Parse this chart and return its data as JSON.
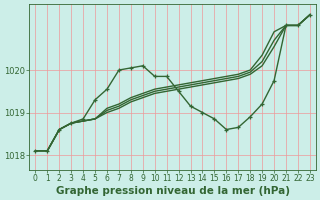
{
  "bg_color": "#cceee8",
  "grid_color": "#aaddcc",
  "line_color": "#336633",
  "marker_color": "#336633",
  "title": "Graphe pression niveau de la mer (hPa)",
  "xlim": [
    -0.5,
    23.5
  ],
  "ylim": [
    1017.65,
    1021.55
  ],
  "yticks": [
    1018,
    1019,
    1020
  ],
  "xticks": [
    0,
    1,
    2,
    3,
    4,
    5,
    6,
    7,
    8,
    9,
    10,
    11,
    12,
    13,
    14,
    15,
    16,
    17,
    18,
    19,
    20,
    21,
    22,
    23
  ],
  "series": [
    {
      "y": [
        1018.1,
        1018.1,
        1018.6,
        1018.75,
        1018.85,
        1019.3,
        1019.55,
        1020.0,
        1020.05,
        1020.1,
        1019.85,
        1019.85,
        1019.5,
        1019.15,
        1019.0,
        1018.85,
        1018.6,
        1018.65,
        1018.9,
        1019.2,
        1019.75,
        1021.05,
        1021.05,
        1021.3
      ],
      "markers": true,
      "lw": 1.0
    },
    {
      "y": [
        1018.1,
        1018.1,
        1018.6,
        1018.75,
        1018.8,
        1018.85,
        1019.1,
        1019.2,
        1019.35,
        1019.45,
        1019.55,
        1019.6,
        1019.65,
        1019.7,
        1019.75,
        1019.8,
        1019.85,
        1019.9,
        1020.0,
        1020.35,
        1020.9,
        1021.05,
        1021.05,
        1021.3
      ],
      "markers": false,
      "lw": 1.0
    },
    {
      "y": [
        1018.1,
        1018.1,
        1018.6,
        1018.75,
        1018.8,
        1018.85,
        1019.05,
        1019.15,
        1019.3,
        1019.4,
        1019.5,
        1019.55,
        1019.6,
        1019.65,
        1019.7,
        1019.75,
        1019.8,
        1019.85,
        1019.95,
        1020.2,
        1020.7,
        1021.05,
        1021.05,
        1021.3
      ],
      "markers": false,
      "lw": 1.0
    },
    {
      "y": [
        1018.1,
        1018.1,
        1018.6,
        1018.75,
        1018.8,
        1018.85,
        1019.0,
        1019.1,
        1019.25,
        1019.35,
        1019.45,
        1019.5,
        1019.55,
        1019.6,
        1019.65,
        1019.7,
        1019.75,
        1019.8,
        1019.9,
        1020.1,
        1020.55,
        1021.05,
        1021.05,
        1021.3
      ],
      "markers": false,
      "lw": 1.0
    }
  ],
  "title_fontsize": 7.5,
  "tick_fontsize": 5.5
}
